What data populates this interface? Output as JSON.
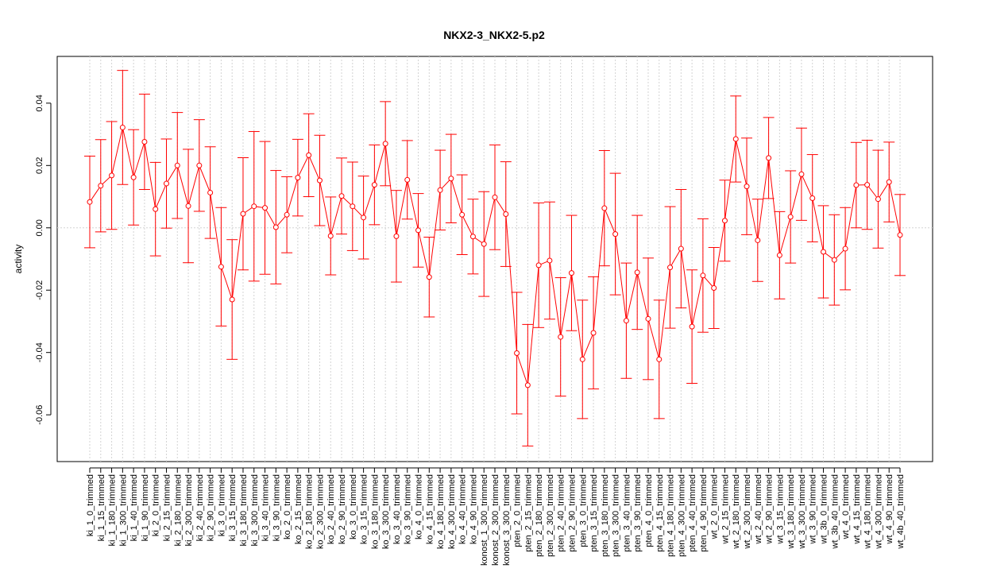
{
  "chart_data": {
    "type": "line",
    "title": "NKX2-3_NKX2-5.p2",
    "xlabel": "",
    "ylabel": "activity",
    "ylim": [
      -0.075,
      0.055
    ],
    "yticks": [
      -0.06,
      -0.04,
      -0.02,
      0.0,
      0.02,
      0.04
    ],
    "ytick_labels": [
      "-0.06",
      "-0.04",
      "-0.02",
      "0.00",
      "0.02",
      "0.04"
    ],
    "grid": "vertical dotted per category",
    "reference_line": 0,
    "colors": {
      "series": "#ff0000",
      "grid": "#d3d3d3"
    },
    "categories": [
      "ki_1_0_trimmed",
      "ki_1_15_trimmed",
      "ki_1_180_trimmed",
      "ki_1_300_trimmed",
      "ki_1_40_trimmed",
      "ki_1_90_trimmed",
      "ki_2_0_trimmed",
      "ki_2_15_trimmed",
      "ki_2_180_trimmed",
      "ki_2_300_trimmed",
      "ki_2_40_trimmed",
      "ki_2_90_trimmed",
      "ki_3_0_trimmed",
      "ki_3_15_trimmed",
      "ki_3_180_trimmed",
      "ki_3_300_trimmed",
      "ki_3_40_trimmed",
      "ki_3_90_trimmed",
      "ko_2_0_trimmed",
      "ko_2_15_trimmed",
      "ko_2_180_trimmed",
      "ko_2_300_trimmed",
      "ko_2_40_trimmed",
      "ko_2_90_trimmed",
      "ko_3_0_trimmed",
      "ko_3_15_trimmed",
      "ko_3_180_trimmed",
      "ko_3_300_trimmed",
      "ko_3_40_trimmed",
      "ko_3_90_trimmed",
      "ko_4_0_trimmed",
      "ko_4_15_trimmed",
      "ko_4_180_trimmed",
      "ko_4_300_trimmed",
      "ko_4_40_trimmed",
      "ko_4_90_trimmed",
      "konost_1_300_trimmed",
      "konost_2_300_trimmed",
      "konost_3_300_trimmed",
      "pten_2_0_trimmed",
      "pten_2_15_trimmed",
      "pten_2_180_trimmed",
      "pten_2_300_trimmed",
      "pten_2_40_trimmed",
      "pten_2_90_trimmed",
      "pten_3_0_trimmed",
      "pten_3_15_trimmed",
      "pten_3_180_trimmed",
      "pten_3_300_trimmed",
      "pten_3_40_trimmed",
      "pten_3_90_trimmed",
      "pten_4_0_trimmed",
      "pten_4_15_trimmed",
      "pten_4_180_trimmed",
      "pten_4_300_trimmed",
      "pten_4_40_trimmed",
      "pten_4_90_trimmed",
      "wt_2_0_trimmed",
      "wt_2_15_trimmed",
      "wt_2_180_trimmed",
      "wt_2_300_trimmed",
      "wt_2_40_trimmed",
      "wt_2_90_trimmed",
      "wt_3_15_trimmed",
      "wt_3_180_trimmed",
      "wt_3_300_trimmed",
      "wt_3_90_trimmed",
      "wt_3b_0_trimmed",
      "wt_3b_40_trimmed",
      "wt_4_0_trimmed",
      "wt_4_15_trimmed",
      "wt_4_180_trimmed",
      "wt_4_300_trimmed",
      "wt_4_90_trimmed",
      "wt_4b_40_trimmed"
    ],
    "values": [
      0.0083,
      0.0135,
      0.0168,
      0.0322,
      0.0162,
      0.0276,
      0.006,
      0.0142,
      0.02,
      0.007,
      0.02,
      0.0113,
      -0.0125,
      -0.023,
      0.0045,
      0.0069,
      0.0064,
      0.0002,
      0.0042,
      0.0161,
      0.0233,
      0.0152,
      -0.0026,
      0.0102,
      0.0069,
      0.0033,
      0.0138,
      0.027,
      -0.0027,
      0.0154,
      -0.0008,
      -0.0158,
      0.0121,
      0.0158,
      0.0042,
      -0.0028,
      -0.0052,
      0.0098,
      0.0044,
      -0.0402,
      -0.0505,
      -0.012,
      -0.0105,
      -0.035,
      -0.0145,
      -0.0422,
      -0.0337,
      0.0063,
      -0.002,
      -0.0298,
      -0.0143,
      -0.0292,
      -0.0422,
      -0.0127,
      -0.0067,
      -0.0317,
      -0.0153,
      -0.0193,
      0.0023,
      0.0285,
      0.0133,
      -0.004,
      0.0224,
      -0.0088,
      0.0035,
      0.0172,
      0.0095,
      -0.0077,
      -0.0103,
      -0.0067,
      0.0137,
      0.0138,
      0.0092,
      0.0147,
      -0.0023
    ],
    "errors": [
      0.0147,
      0.0148,
      0.0173,
      0.0183,
      0.0153,
      0.0153,
      0.015,
      0.0143,
      0.017,
      0.0182,
      0.0147,
      0.0147,
      0.019,
      0.0192,
      0.018,
      0.024,
      0.0213,
      0.0182,
      0.0122,
      0.0123,
      0.0133,
      0.0145,
      0.0125,
      0.0122,
      0.0142,
      0.0133,
      0.0128,
      0.0135,
      0.0147,
      0.0126,
      0.0118,
      0.0128,
      0.0128,
      0.0142,
      0.0128,
      0.012,
      0.0168,
      0.0168,
      0.0168,
      0.0195,
      0.0195,
      0.02,
      0.0188,
      0.019,
      0.0185,
      0.019,
      0.018,
      0.0185,
      0.0195,
      0.0185,
      0.0183,
      0.0195,
      0.019,
      0.0195,
      0.019,
      0.0182,
      0.0182,
      0.013,
      0.013,
      0.0138,
      0.0155,
      0.0132,
      0.013,
      0.014,
      0.0148,
      0.0148,
      0.014,
      0.0148,
      0.0145,
      0.0132,
      0.0137,
      0.0143,
      0.0157,
      0.0128,
      0.013
    ]
  }
}
